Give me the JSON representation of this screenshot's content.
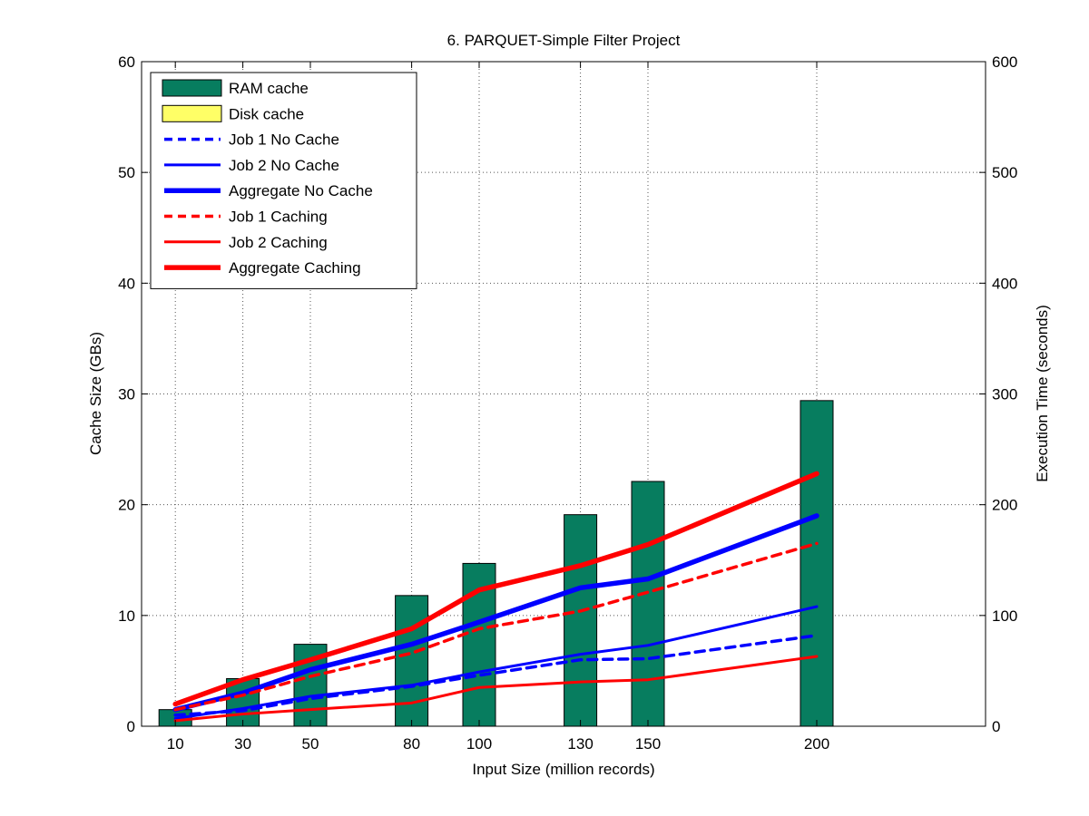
{
  "chart_data": {
    "type": "bar",
    "title": "6. PARQUET-Simple Filter Project",
    "xlabel": "Input Size (million records)",
    "ylabel": "Cache Size (GBs)",
    "y2label": "Execution Time (seconds)",
    "x": [
      10,
      30,
      50,
      80,
      100,
      130,
      150,
      200
    ],
    "xlim": [
      0,
      250
    ],
    "ylim": [
      0,
      60
    ],
    "y2lim": [
      0,
      600
    ],
    "yticks": [
      0,
      10,
      20,
      30,
      40,
      50,
      60
    ],
    "y2ticks": [
      0,
      100,
      200,
      300,
      400,
      500,
      600
    ],
    "grid": true,
    "legend_position": "top-left",
    "bars": [
      {
        "name": "RAM cache",
        "color": "#077D5F",
        "values": [
          1.5,
          4.3,
          7.4,
          11.8,
          14.7,
          19.1,
          22.1,
          29.4
        ]
      },
      {
        "name": "Disk cache",
        "color": "#FFFF66",
        "values": [
          0,
          0,
          0,
          0,
          0,
          0,
          0,
          0
        ]
      }
    ],
    "series": [
      {
        "name": "Job 1 No Cache",
        "axis": "right",
        "color": "#0000FF",
        "style": "dashed",
        "width": "medium",
        "values": [
          10,
          14,
          25,
          36,
          46,
          60,
          61,
          82
        ]
      },
      {
        "name": "Job 2 No Cache",
        "axis": "right",
        "color": "#0000FF",
        "style": "solid",
        "width": "thin",
        "values": [
          7,
          16,
          27,
          37,
          49,
          65,
          73,
          108
        ]
      },
      {
        "name": "Aggregate No Cache",
        "axis": "right",
        "color": "#0000FF",
        "style": "solid",
        "width": "thick",
        "values": [
          15,
          30,
          51,
          74,
          94,
          125,
          133,
          190
        ]
      },
      {
        "name": "Job 1 Caching",
        "axis": "right",
        "color": "#FF0000",
        "style": "dashed",
        "width": "medium",
        "values": [
          15,
          28,
          45,
          66,
          88,
          104,
          121,
          165
        ]
      },
      {
        "name": "Job 2 Caching",
        "axis": "right",
        "color": "#FF0000",
        "style": "solid",
        "width": "thin",
        "values": [
          5,
          11,
          15,
          21,
          35,
          40,
          42,
          63
        ]
      },
      {
        "name": "Aggregate Caching",
        "axis": "right",
        "color": "#FF0000",
        "style": "solid",
        "width": "thick",
        "values": [
          20,
          42,
          60,
          88,
          123,
          145,
          164,
          228
        ]
      }
    ]
  }
}
